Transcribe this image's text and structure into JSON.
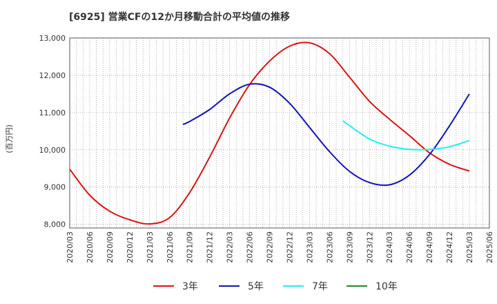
{
  "chart_data": {
    "type": "line",
    "title": "[6925]  営業CFの12か月移動合計の平均値の推移",
    "xlabel": "",
    "ylabel": "(百万円)",
    "ylim": [
      7900,
      13000
    ],
    "yticks": [
      8000,
      9000,
      10000,
      11000,
      12000,
      13000
    ],
    "ytick_labels": [
      "8,000",
      "9,000",
      "10,000",
      "11,000",
      "12,000",
      "13,000"
    ],
    "xticks": [
      "2020/03",
      "2020/06",
      "2020/09",
      "2020/12",
      "2021/03",
      "2021/06",
      "2021/09",
      "2021/12",
      "2022/03",
      "2022/06",
      "2022/09",
      "2022/12",
      "2023/03",
      "2023/06",
      "2023/09",
      "2023/12",
      "2024/03",
      "2024/06",
      "2024/09",
      "2024/12",
      "2025/03",
      "2025/06"
    ],
    "grid": true,
    "legend_position": "bottom",
    "series": [
      {
        "name": "3年",
        "color": "#dd1111",
        "x": [
          "2020/03",
          "2020/06",
          "2020/09",
          "2020/12",
          "2021/03",
          "2021/06",
          "2021/09",
          "2021/12",
          "2022/03",
          "2022/06",
          "2022/09",
          "2022/12",
          "2023/03",
          "2023/06",
          "2023/09",
          "2023/12",
          "2024/03",
          "2024/06",
          "2024/09",
          "2024/12",
          "2025/03"
        ],
        "values": [
          9480,
          8780,
          8350,
          8120,
          8010,
          8180,
          8850,
          9800,
          10850,
          11750,
          12380,
          12780,
          12870,
          12580,
          11950,
          11300,
          10820,
          10380,
          9920,
          9610,
          9430
        ]
      },
      {
        "name": "5年",
        "color": "#1111bb",
        "x": [
          "2021/08",
          "2021/09",
          "2021/12",
          "2022/03",
          "2022/06",
          "2022/09",
          "2022/12",
          "2023/03",
          "2023/06",
          "2023/09",
          "2023/12",
          "2024/03",
          "2024/06",
          "2024/09",
          "2024/12",
          "2025/03"
        ],
        "values": [
          10680,
          10760,
          11080,
          11500,
          11760,
          11680,
          11250,
          10600,
          9950,
          9420,
          9120,
          9060,
          9320,
          9870,
          10640,
          11500
        ]
      },
      {
        "name": "7年",
        "color": "#22eeee",
        "x": [
          "2023/08",
          "2023/09",
          "2023/12",
          "2024/03",
          "2024/06",
          "2024/09",
          "2024/12",
          "2025/03"
        ],
        "values": [
          10780,
          10650,
          10290,
          10100,
          10010,
          10010,
          10080,
          10250
        ]
      },
      {
        "name": "10年",
        "color": "#228822",
        "x": [],
        "values": []
      }
    ]
  }
}
